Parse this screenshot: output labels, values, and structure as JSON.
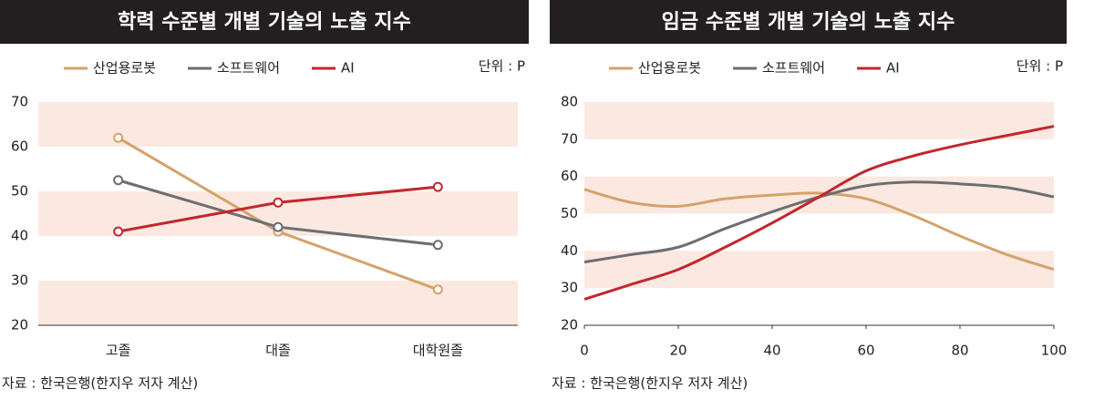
{
  "chart_data": [
    {
      "type": "line",
      "title": "학력 수준별 개별 기술의 노출 지수",
      "unit": "단위 : P",
      "source": "자료 : 한국은행(한지우 저자 계산)",
      "categories": [
        "고졸",
        "대졸",
        "대학원졸"
      ],
      "markers": true,
      "smooth": false,
      "series": [
        {
          "name": "산업용로봇",
          "color": "#d4a26a",
          "values": [
            62,
            41,
            28
          ]
        },
        {
          "name": "소프트웨어",
          "color": "#6d6e71",
          "values": [
            52.5,
            42,
            38
          ]
        },
        {
          "name": "AI",
          "color": "#c1272d",
          "values": [
            41,
            47.5,
            51
          ]
        }
      ],
      "ylim": [
        20,
        70
      ],
      "yticks": [
        20,
        30,
        40,
        50,
        60,
        70
      ]
    },
    {
      "type": "line",
      "title": "임금 수준별 개별 기술의 노출 지수",
      "unit": "단위 : P",
      "source": "자료 : 한국은행(한지우 저자 계산)",
      "x": [
        0,
        10,
        20,
        30,
        40,
        50,
        60,
        70,
        80,
        90,
        100
      ],
      "markers": false,
      "smooth": true,
      "series": [
        {
          "name": "산업용로봇",
          "color": "#d4a26a",
          "values": [
            56.5,
            53,
            52,
            54,
            55,
            55.5,
            54,
            49.5,
            44,
            39,
            35
          ]
        },
        {
          "name": "소프트웨어",
          "color": "#6d6e71",
          "values": [
            37,
            39,
            41,
            46,
            50.5,
            54.5,
            57.5,
            58.5,
            58,
            57,
            54.5
          ]
        },
        {
          "name": "AI",
          "color": "#c1272d",
          "values": [
            27,
            31,
            35,
            41,
            47.5,
            54.5,
            61.5,
            65.5,
            68.5,
            71,
            73.5
          ]
        }
      ],
      "xlim": [
        0,
        100
      ],
      "xticks": [
        0,
        20,
        40,
        60,
        80,
        100
      ],
      "ylim": [
        20,
        80
      ],
      "yticks": [
        20,
        30,
        40,
        50,
        60,
        70,
        80
      ]
    }
  ]
}
